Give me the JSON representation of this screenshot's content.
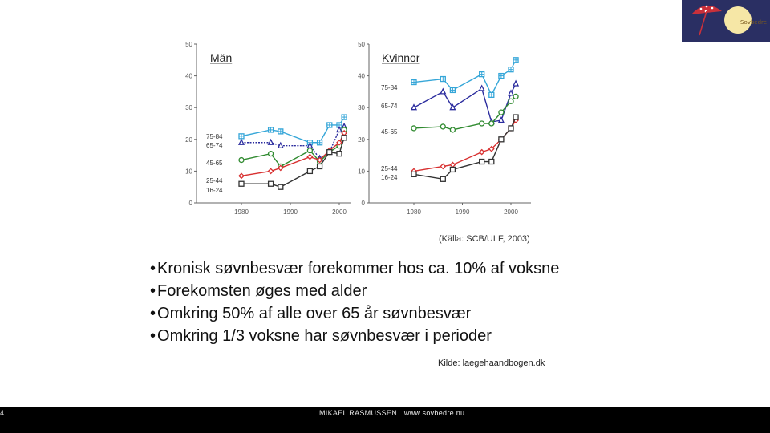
{
  "logo": {
    "text": "Sovbedre",
    "colors": {
      "bg": "#2a2f63",
      "moon": "#f6e7a6",
      "umbrella": "#c9303a"
    }
  },
  "chart_data": [
    {
      "type": "line",
      "title": "Män",
      "ylim": [
        0,
        50
      ],
      "yticks": [
        0,
        10,
        20,
        30,
        40,
        50
      ],
      "xticks": [
        1980,
        1990,
        2000
      ],
      "xlim": [
        1975,
        2003
      ],
      "series": [
        {
          "name": "75-84",
          "color": "#35a6d8",
          "marker": "square-cross",
          "x": [
            1980,
            1986,
            1988,
            1994,
            1996,
            1998,
            2000,
            2001
          ],
          "values": [
            21,
            23,
            22.5,
            19,
            19,
            24.5,
            24.5,
            27
          ]
        },
        {
          "name": "65-74",
          "color": "#2b2c9e",
          "marker": "triangle",
          "x": [
            1980,
            1986,
            1988,
            1994,
            1996,
            1998,
            2000,
            2001
          ],
          "values": [
            19,
            19,
            18,
            18,
            14,
            16,
            23,
            24
          ]
        },
        {
          "name": "45-65",
          "color": "#2f8a2f",
          "marker": "circle",
          "x": [
            1980,
            1986,
            1988,
            1994,
            1996,
            1998,
            2000,
            2001
          ],
          "values": [
            13.5,
            15.5,
            11.5,
            16.5,
            13,
            16,
            18,
            23
          ]
        },
        {
          "name": "25-44",
          "color": "#d83030",
          "marker": "diamond",
          "x": [
            1980,
            1986,
            1988,
            1994,
            1996,
            1998,
            2000,
            2001
          ],
          "values": [
            8.5,
            10,
            11,
            14.5,
            13.5,
            16.5,
            19,
            22
          ]
        },
        {
          "name": "16-24",
          "color": "#333333",
          "marker": "square",
          "x": [
            1980,
            1986,
            1988,
            1994,
            1996,
            1998,
            2000,
            2001
          ],
          "values": [
            6,
            6,
            5,
            10,
            11.5,
            16,
            15.5,
            20.5
          ]
        }
      ]
    },
    {
      "type": "line",
      "title": "Kvinnor",
      "ylim": [
        0,
        50
      ],
      "yticks": [
        0,
        10,
        20,
        30,
        40,
        50
      ],
      "xticks": [
        1980,
        1990,
        2000
      ],
      "xlim": [
        1975,
        2004
      ],
      "series": [
        {
          "name": "75-84",
          "color": "#35a6d8",
          "marker": "square-cross",
          "x": [
            1980,
            1986,
            1988,
            1994,
            1996,
            1998,
            2000,
            2001
          ],
          "values": [
            38,
            39,
            35.5,
            40.5,
            34,
            40,
            42,
            45
          ]
        },
        {
          "name": "65-74",
          "color": "#2b2c9e",
          "marker": "triangle",
          "x": [
            1980,
            1986,
            1988,
            1994,
            1996,
            1998,
            2000,
            2001
          ],
          "values": [
            30,
            35,
            30,
            36,
            25.5,
            26,
            34.5,
            37.5
          ]
        },
        {
          "name": "45-65",
          "color": "#2f8a2f",
          "marker": "circle",
          "x": [
            1980,
            1986,
            1988,
            1994,
            1996,
            1998,
            2000,
            2001
          ],
          "values": [
            23.5,
            24,
            23,
            25,
            25,
            28.5,
            32,
            33.5
          ]
        },
        {
          "name": "25-44",
          "color": "#d83030",
          "marker": "diamond",
          "x": [
            1980,
            1986,
            1988,
            1994,
            1996,
            1998,
            2000,
            2001
          ],
          "values": [
            10,
            11.5,
            12,
            16,
            17,
            20,
            23.5,
            26
          ]
        },
        {
          "name": "16-24",
          "color": "#333333",
          "marker": "square",
          "x": [
            1980,
            1986,
            1988,
            1994,
            1996,
            1998,
            2000,
            2001
          ],
          "values": [
            9,
            7.5,
            10.5,
            13,
            13,
            20,
            23.5,
            27
          ]
        }
      ]
    }
  ],
  "source": "(Källa: SCB/ULF, 2003)",
  "bullets": [
    "Kronisk søvnbesvær forekommer hos ca. 10% af voksne",
    "Forekomsten øges med alder",
    "Omkring 50% af alle over 65 år søvnbesvær",
    "Omkring 1/3 voksne har søvnbesvær i perioder"
  ],
  "kilde": "Kilde: laegehaandbogen.dk",
  "footer": {
    "page_number": "4",
    "author": "MIKAEL RASMUSSEN",
    "website": "www.sovbedre.nu"
  }
}
